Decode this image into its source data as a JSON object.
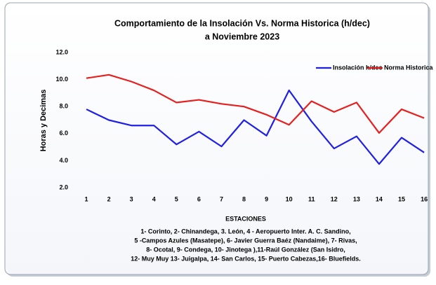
{
  "chart_data": {
    "type": "line",
    "title": "Comportamiento de la Insolación Vs. Norma Historica (h/dec)",
    "subtitle": "a  Noviembre 2023",
    "y_label": "Horas y Decimas",
    "x_label": "ESTACIONES",
    "note": [
      "1- Corinto,  2- Chinandega, 3. León, 4 - Aeropuerto Inter. A. C. Sandino,",
      "5 -Campos Azules (Masatepe), 6- Javier Guerra Baéz (Nandaime), 7- Rivas,",
      "8- Ocotal, 9- Condega, 10- Jinotega ),11-Raúl González (San Isidro,",
      "12- Muy Muy 13- Juigalpa, 14- San Carlos, 15- Puerto Cabezas,16- Bluefields."
    ],
    "categories": [
      1,
      2,
      3,
      4,
      5,
      6,
      7,
      8,
      9,
      10,
      11,
      12,
      13,
      14,
      15,
      16
    ],
    "series": [
      {
        "name": "Insolación h/dec",
        "color": "#1f1fe6",
        "values": [
          7.8,
          7.0,
          6.6,
          6.6,
          5.2,
          6.15,
          5.05,
          7.0,
          5.85,
          9.2,
          6.9,
          4.9,
          5.8,
          3.75,
          5.7,
          4.6
        ]
      },
      {
        "name": "Norma Historica",
        "color": "#e61f1f",
        "values": [
          10.1,
          10.35,
          9.85,
          9.2,
          8.3,
          8.5,
          8.2,
          8.0,
          7.4,
          6.65,
          8.4,
          7.6,
          8.3,
          6.05,
          7.8,
          7.15
        ]
      }
    ],
    "ylim": [
      2,
      12
    ],
    "yticks": [
      {
        "value": 2,
        "label": "2.0"
      },
      {
        "value": 4,
        "label": "4.0"
      },
      {
        "value": 6,
        "label": "6.0"
      },
      {
        "value": 8,
        "label": "8.0"
      },
      {
        "value": 10,
        "label": "10.0"
      },
      {
        "value": 12,
        "label": "12.0"
      }
    ],
    "grid": false,
    "legend": "top-right"
  }
}
